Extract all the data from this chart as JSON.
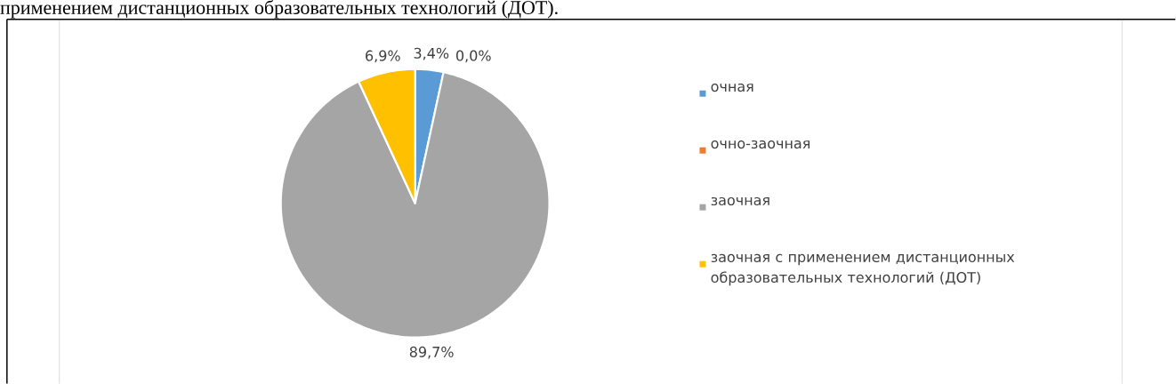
{
  "chart_data": {
    "type": "pie",
    "categories": [
      "очная",
      "очно-заочная",
      "заочная",
      "заочная с применением дистанционных образовательных технологий (ДОТ)"
    ],
    "values": [
      3.4,
      0.0,
      89.7,
      6.9
    ],
    "value_labels": [
      "3,4%",
      "0,0%",
      "89,7%",
      "6,9%"
    ],
    "colors": [
      "#5b9bd5",
      "#ed7d31",
      "#a5a5a5",
      "#ffc000"
    ],
    "legend": "right",
    "annotations": [
      "применением дистанционных образовательных технологий (ДОТ)."
    ]
  }
}
